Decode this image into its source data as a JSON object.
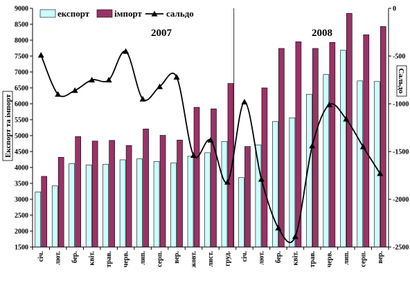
{
  "chart_data": {
    "type": "bar",
    "categories": [
      "січ.",
      "лют.",
      "бер.",
      "квіт.",
      "трав.",
      "черв.",
      "лип.",
      "серп.",
      "вер.",
      "жовт.",
      "лист.",
      "груд.",
      "січ.",
      "лют.",
      "бер.",
      "квіт.",
      "трав.",
      "черв.",
      "лип.",
      "серп.",
      "вер."
    ],
    "series": [
      {
        "name": "експорт",
        "axis": "left",
        "kind": "bar",
        "color": "#ccffff",
        "values": [
          3230,
          3420,
          4120,
          4080,
          4100,
          4240,
          4270,
          4190,
          4140,
          4350,
          4460,
          4820,
          3680,
          4710,
          5440,
          5560,
          6300,
          6920,
          7680,
          6720,
          6700
        ]
      },
      {
        "name": "імпорт",
        "axis": "left",
        "kind": "bar",
        "color": "#993366",
        "values": [
          3720,
          4320,
          4970,
          4830,
          4850,
          4690,
          5210,
          5010,
          4860,
          5890,
          5840,
          6640,
          4660,
          6500,
          7740,
          7950,
          7740,
          7930,
          8840,
          8170,
          8430
        ]
      },
      {
        "name": "сальдо",
        "axis": "right",
        "kind": "line",
        "color": "#000000",
        "values": [
          -490,
          -900,
          -860,
          -750,
          -750,
          -450,
          -950,
          -820,
          -720,
          -1540,
          -1380,
          -1820,
          -980,
          -1790,
          -2300,
          -2390,
          -1440,
          -1010,
          -1160,
          -1450,
          -1730
        ]
      }
    ],
    "y_left": {
      "min": 1500,
      "max": 9000,
      "step": 500,
      "label": "Експорт та імпорт"
    },
    "y_right": {
      "min": -2500,
      "max": 0,
      "step": 500,
      "label": "Сальдо"
    },
    "year_labels": [
      "2007",
      "2008"
    ],
    "year_divider_after_index": 11,
    "legend_position": "top-left",
    "grid": false
  }
}
